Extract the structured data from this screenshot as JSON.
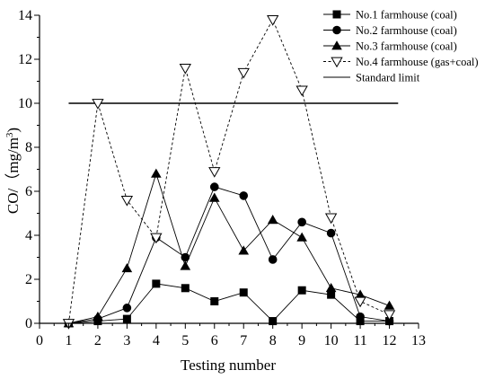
{
  "chart_data": {
    "type": "line",
    "xlabel": "Testing number",
    "ylabel": "CO/（mg/m",
    "ylabel_superscript": "3",
    "ylabel_close": ")",
    "xlim": [
      0,
      13
    ],
    "ylim": [
      0,
      14
    ],
    "xticks": [
      0,
      1,
      2,
      3,
      4,
      5,
      6,
      7,
      8,
      9,
      10,
      11,
      12,
      13
    ],
    "yticks": [
      0,
      2,
      4,
      6,
      8,
      10,
      12,
      14
    ],
    "legend_position": "top-right",
    "grid": false,
    "series": [
      {
        "name": "No.1 farmhouse (coal)",
        "marker": "square",
        "line": "solid",
        "color": "#000000",
        "x": [
          1,
          2,
          3,
          4,
          5,
          6,
          7,
          8,
          9,
          10,
          11,
          12
        ],
        "y": [
          0,
          0.1,
          0.2,
          1.8,
          1.6,
          1.0,
          1.4,
          0.1,
          1.5,
          1.3,
          0.1,
          0.1
        ]
      },
      {
        "name": "No.2 farmhouse (coal)",
        "marker": "circle",
        "line": "solid",
        "color": "#000000",
        "x": [
          1,
          2,
          3,
          4,
          5,
          6,
          7,
          8,
          9,
          10,
          11,
          12
        ],
        "y": [
          0,
          0.2,
          0.7,
          3.9,
          3.0,
          6.2,
          5.8,
          2.9,
          4.6,
          4.1,
          0.3,
          0.1
        ]
      },
      {
        "name": "No.3 farmhouse (coal)",
        "marker": "triangle-up",
        "line": "solid",
        "color": "#000000",
        "x": [
          1,
          2,
          3,
          4,
          5,
          6,
          7,
          8,
          9,
          10,
          11,
          12
        ],
        "y": [
          0,
          0.3,
          2.5,
          6.8,
          2.6,
          5.7,
          3.3,
          4.7,
          3.9,
          1.6,
          1.3,
          0.8
        ]
      },
      {
        "name": "No.4 farmhouse (gas+coal)",
        "marker": "triangle-down-open",
        "line": "dashed",
        "color": "#000000",
        "x": [
          1,
          2,
          3,
          4,
          5,
          6,
          7,
          8,
          9,
          10,
          11,
          12
        ],
        "y": [
          0,
          10.0,
          5.6,
          3.9,
          11.6,
          6.9,
          11.4,
          13.8,
          10.6,
          4.8,
          1.0,
          0.4
        ]
      }
    ],
    "reference_line": {
      "name": "Standard limit",
      "y": 10,
      "x_range": [
        1,
        12.3
      ],
      "line": "solid",
      "color": "#000000"
    }
  }
}
